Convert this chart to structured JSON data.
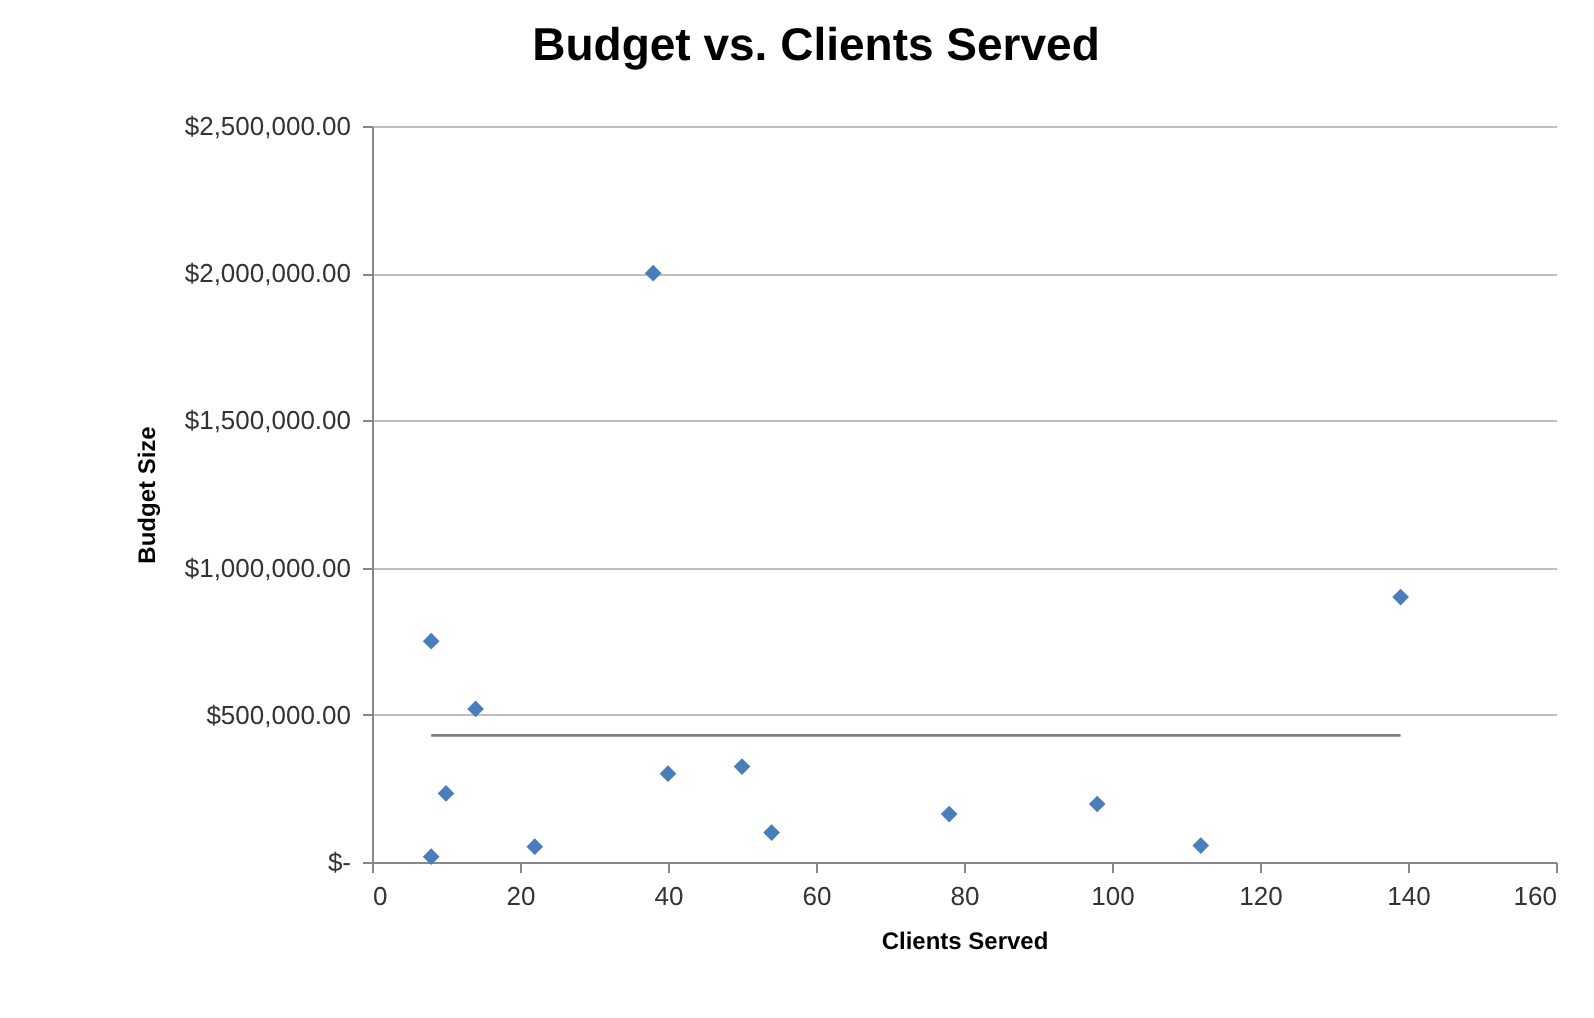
{
  "chart_data": {
    "type": "scatter",
    "title": "Budget vs. Clients Served",
    "xlabel": "Clients Served",
    "ylabel": "Budget Size",
    "series": [
      {
        "color": "#4a7ebb",
        "x": [
          8,
          14,
          10,
          8,
          22,
          40,
          50,
          54,
          78,
          98,
          112,
          139,
          38
        ],
        "values": [
          750000,
          520000,
          233000,
          18000,
          52000,
          300000,
          324000,
          100000,
          163000,
          197000,
          56000,
          900000,
          2000000
        ]
      },
      {
        "type": "line",
        "color": "#7f7f7f",
        "marker": "none",
        "x": [
          8,
          139
        ],
        "values": [
          430000,
          430000
        ]
      }
    ],
    "xlim": [
      0,
      160
    ],
    "xticks": [
      0,
      20,
      40,
      60,
      80,
      100,
      120,
      140,
      160
    ],
    "ylim": [
      0,
      2500000
    ],
    "yticks": [
      {
        "value": 0,
        "label": "$-"
      },
      {
        "value": 500000,
        "label": "$500,000.00"
      },
      {
        "value": 1000000,
        "label": "$1,000,000.00"
      },
      {
        "value": 1500000,
        "label": "$1,500,000.00"
      },
      {
        "value": 2000000,
        "label": "$2,000,000.00"
      },
      {
        "value": 2500000,
        "label": "$2,500,000.00"
      }
    ],
    "grid": "y",
    "marker": "diamond"
  }
}
